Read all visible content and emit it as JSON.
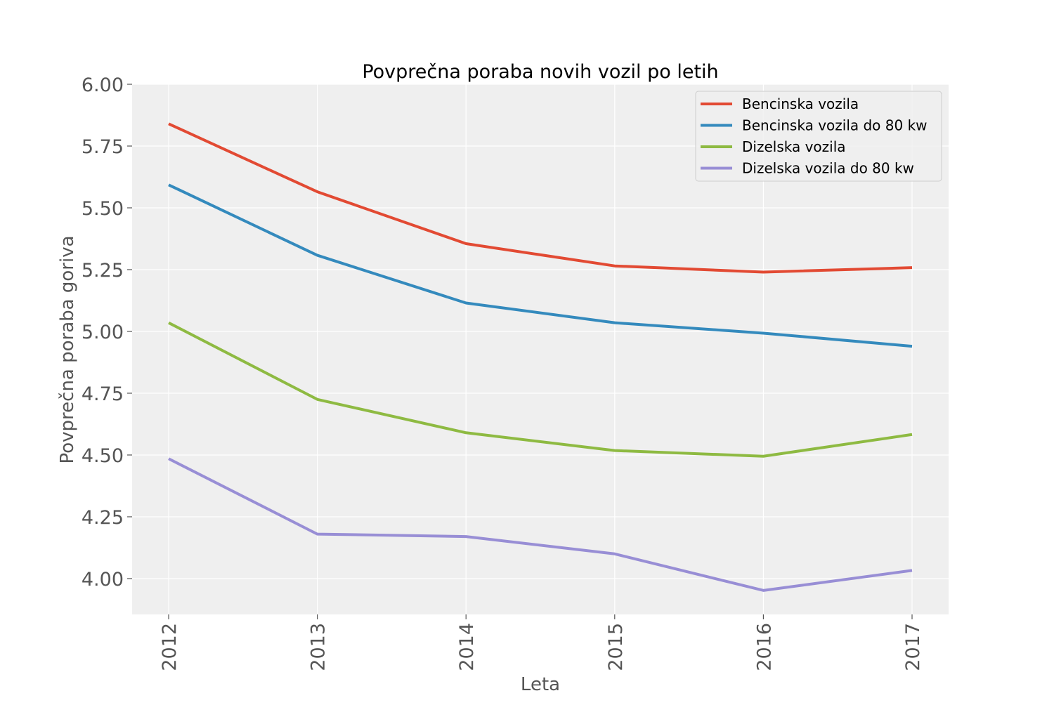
{
  "chart_data": {
    "type": "line",
    "title": "Povprečna poraba novih vozil po letih",
    "xlabel": "Leta",
    "ylabel": "Povprečna poraba goriva",
    "x": [
      "2012",
      "2013",
      "2014",
      "2015",
      "2016",
      "2017"
    ],
    "ylim": [
      3.855,
      6.0
    ],
    "yticks": [
      "4.00",
      "4.25",
      "4.50",
      "4.75",
      "5.00",
      "5.25",
      "5.50",
      "5.75",
      "6.00"
    ],
    "grid": true,
    "legend_position": "top-right",
    "series": [
      {
        "name": "Bencinska vozila",
        "color": "#E24A33",
        "values": [
          5.84,
          5.565,
          5.355,
          5.265,
          5.24,
          5.258
        ]
      },
      {
        "name": "Bencinska vozila do 80 kw",
        "color": "#348ABD",
        "values": [
          5.593,
          5.308,
          5.115,
          5.035,
          4.993,
          4.94
        ]
      },
      {
        "name": "Dizelska vozila",
        "color": "#8EBA42",
        "values": [
          5.035,
          4.725,
          4.59,
          4.518,
          4.495,
          4.583
        ]
      },
      {
        "name": "Dizelska vozila do 80 kw",
        "color": "#988ED5",
        "values": [
          4.485,
          4.18,
          4.17,
          4.1,
          3.952,
          4.033
        ]
      }
    ]
  }
}
